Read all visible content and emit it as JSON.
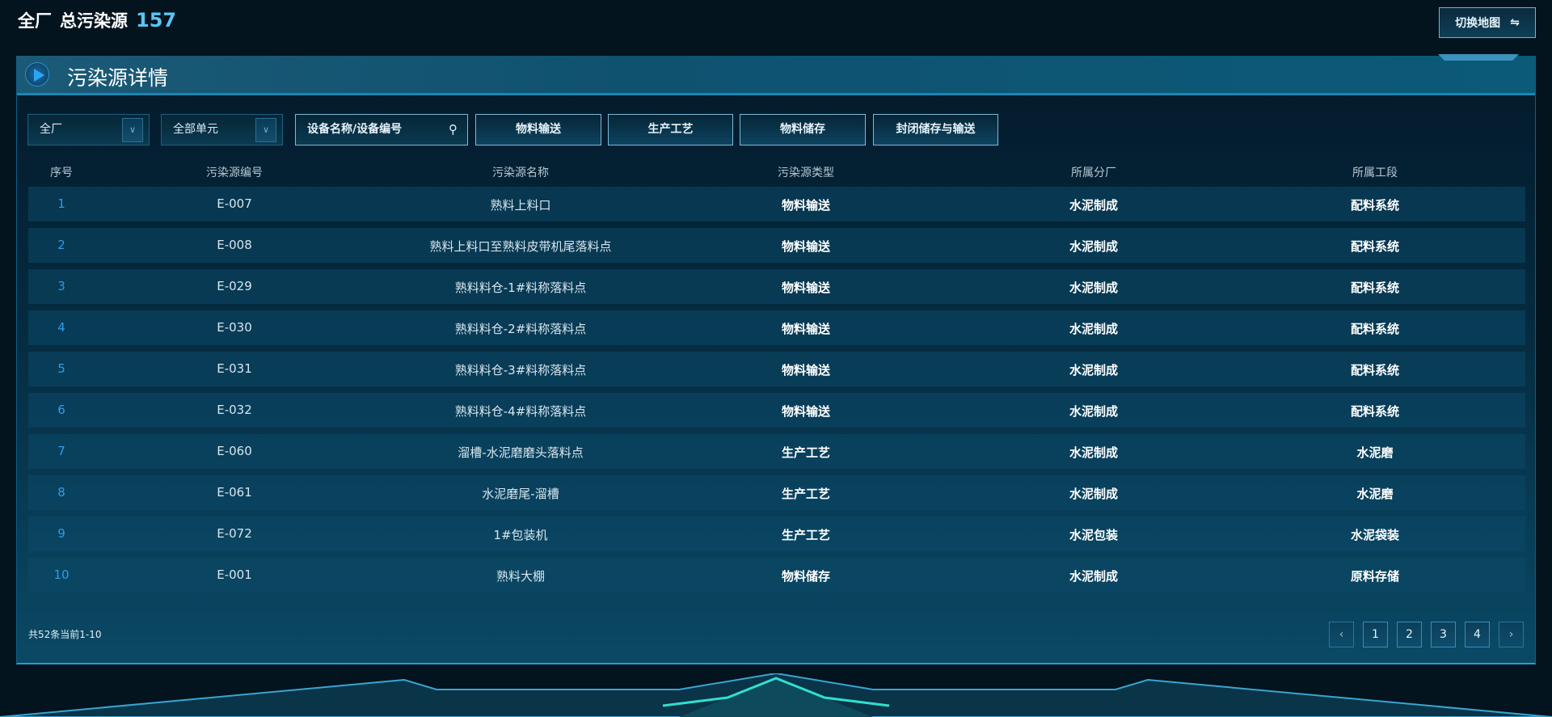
{
  "top": {
    "scope": "全厂",
    "label": "总污染源",
    "count": "157",
    "switch_label": "切换地图",
    "switch_icon": "swap-arrows-icon"
  },
  "panel": {
    "title": "污染源详情"
  },
  "filters": {
    "plant": "全厂",
    "unit": "全部单元",
    "search_placeholder": "设备名称/设备编号",
    "categories": [
      "物料输送",
      "生产工艺",
      "物料储存",
      "封闭储存与输送"
    ]
  },
  "table": {
    "headers": [
      "序号",
      "污染源编号",
      "污染源名称",
      "污染源类型",
      "所属分厂",
      "所属工段"
    ],
    "rows": [
      [
        "1",
        "E-007",
        "熟料上料口",
        "物料输送",
        "水泥制成",
        "配料系统"
      ],
      [
        "2",
        "E-008",
        "熟料上料口至熟料皮带机尾落料点",
        "物料输送",
        "水泥制成",
        "配料系统"
      ],
      [
        "3",
        "E-029",
        "熟料料仓-1#料称落料点",
        "物料输送",
        "水泥制成",
        "配料系统"
      ],
      [
        "4",
        "E-030",
        "熟料料仓-2#料称落料点",
        "物料输送",
        "水泥制成",
        "配料系统"
      ],
      [
        "5",
        "E-031",
        "熟料料仓-3#料称落料点",
        "物料输送",
        "水泥制成",
        "配料系统"
      ],
      [
        "6",
        "E-032",
        "熟料料仓-4#料称落料点",
        "物料输送",
        "水泥制成",
        "配料系统"
      ],
      [
        "7",
        "E-060",
        "溜槽-水泥磨磨头落料点",
        "生产工艺",
        "水泥制成",
        "水泥磨"
      ],
      [
        "8",
        "E-061",
        "水泥磨尾-溜槽",
        "生产工艺",
        "水泥制成",
        "水泥磨"
      ],
      [
        "9",
        "E-072",
        "1#包装机",
        "生产工艺",
        "水泥包装",
        "水泥袋装"
      ],
      [
        "10",
        "E-001",
        "熟料大棚",
        "物料储存",
        "水泥制成",
        "原料存储"
      ]
    ]
  },
  "pagination": {
    "summary": "共52条当前1-10",
    "prev": "‹",
    "next": "›",
    "pages": [
      "1",
      "2",
      "3",
      "4"
    ]
  },
  "colors": {
    "accent": "#2f9be8",
    "count": "#5cc3f2",
    "border": "#7ab9d6"
  }
}
